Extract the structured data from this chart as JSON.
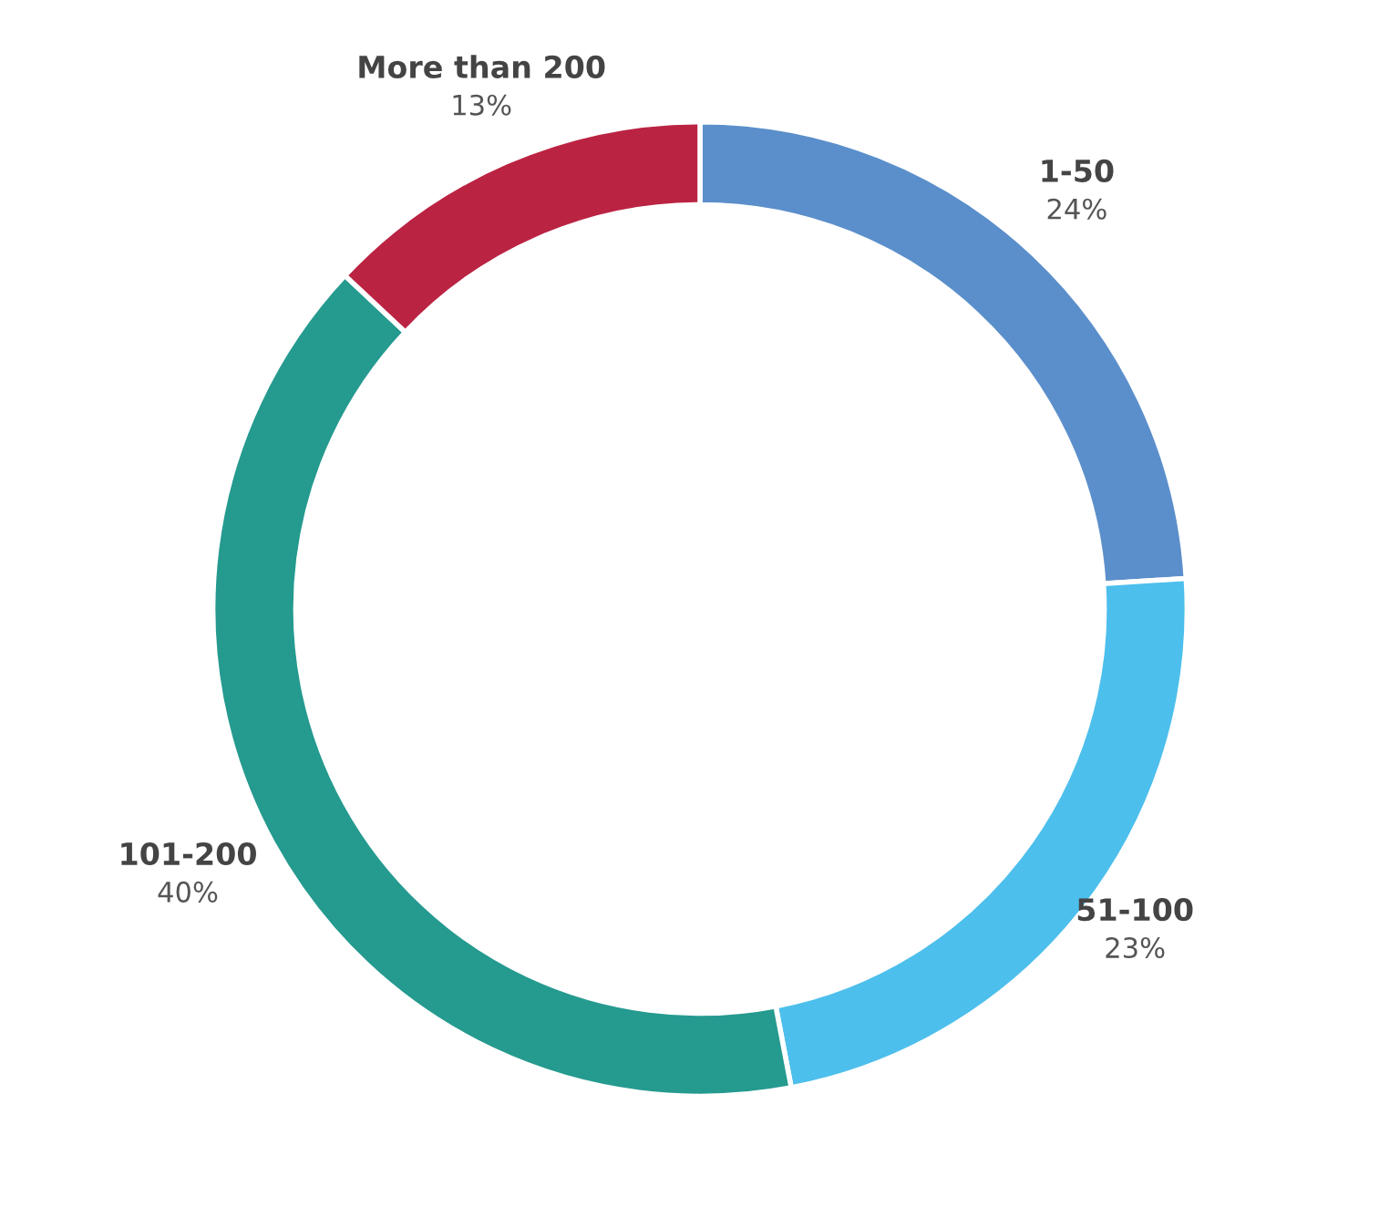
{
  "chart_data": {
    "type": "donut",
    "categories": [
      "1-50",
      "51-100",
      "101-200",
      "More than 200"
    ],
    "values": [
      24,
      23,
      40,
      13
    ],
    "value_labels": [
      "24%",
      "23%",
      "40%",
      "13%"
    ],
    "colors": [
      "#5b8fcb",
      "#4dbfec",
      "#259a8f",
      "#bb2342"
    ],
    "legend": false
  }
}
